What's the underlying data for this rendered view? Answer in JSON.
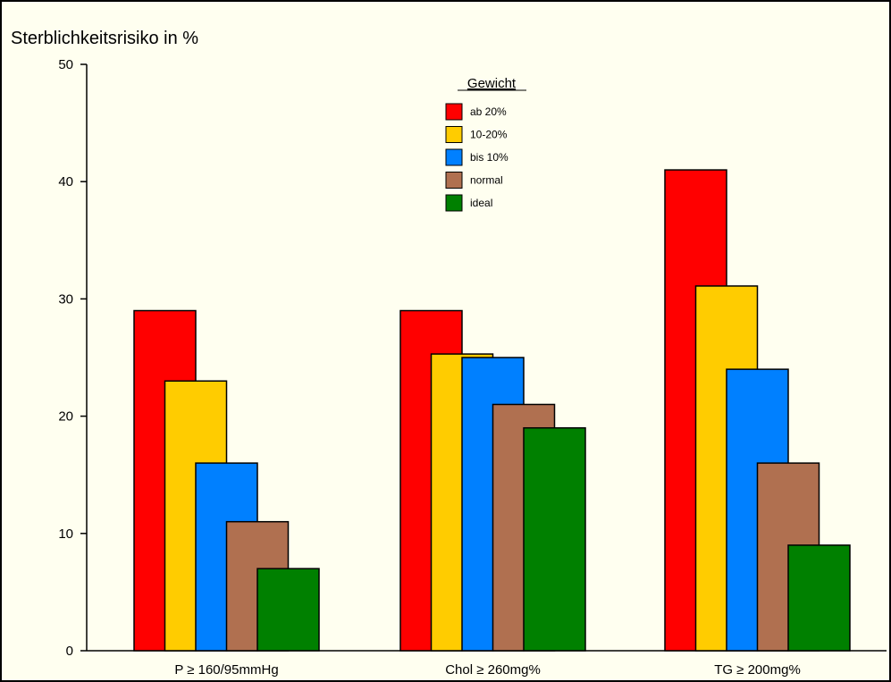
{
  "chart_data": {
    "type": "bar",
    "ylabel": "Sterblichkeitsrisiko in %",
    "ylim": [
      0,
      50
    ],
    "yticks": [
      0,
      10,
      20,
      30,
      40,
      50
    ],
    "grid": false,
    "legend_title": "Gewicht",
    "legend_position": "top-center",
    "categories": [
      "P ≥ 160/95mmHg",
      "Chol ≥ 260mg%",
      "TG ≥ 200mg%"
    ],
    "series": [
      {
        "name": "ab 20%",
        "color": "#ff0000",
        "values": [
          29,
          29,
          41
        ]
      },
      {
        "name": "10-20%",
        "color": "#ffcc00",
        "values": [
          23,
          25.3,
          31.1
        ]
      },
      {
        "name": "bis 10%",
        "color": "#0080ff",
        "values": [
          16,
          25,
          24
        ]
      },
      {
        "name": "normal",
        "color": "#b07050",
        "values": [
          11,
          21,
          16
        ]
      },
      {
        "name": "ideal",
        "color": "#008000",
        "values": [
          7,
          19,
          9
        ]
      }
    ]
  }
}
